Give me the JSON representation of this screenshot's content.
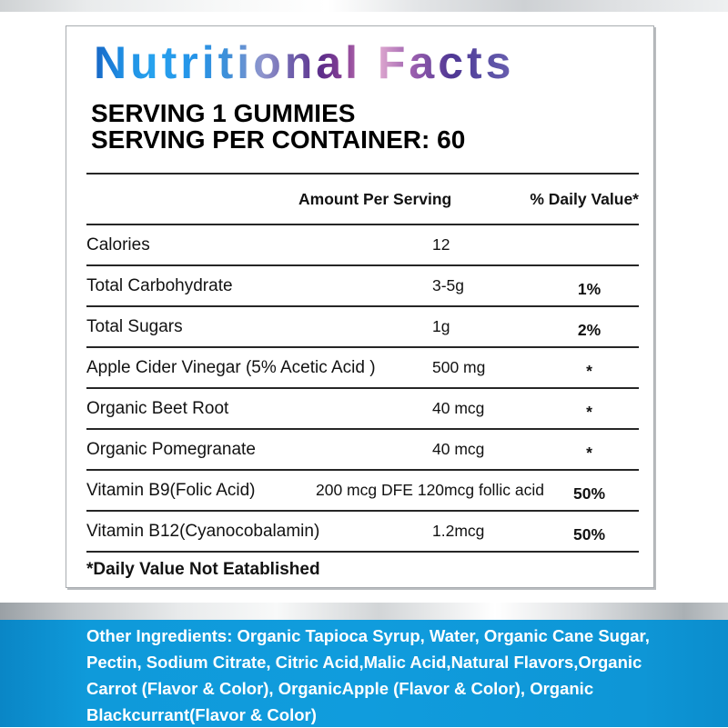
{
  "page": {
    "title": "Nutritional Facts"
  },
  "serving": {
    "line1": "SERVING 1 GUMMIES",
    "line2": "SERVING PER CONTAINER: 60"
  },
  "table": {
    "header": {
      "amount": "Amount Per Serving",
      "daily_value": "% Daily Value*"
    },
    "rows": [
      {
        "label": "Calories",
        "amount": "12",
        "daily_value": ""
      },
      {
        "label": "Total Carbohydrate",
        "amount": "3-5g",
        "daily_value": "1%"
      },
      {
        "label": "Total Sugars",
        "amount": "1g",
        "daily_value": "2%"
      },
      {
        "label": "Apple Cider Vinegar (5% Acetic Acid )",
        "amount": "500 mg",
        "daily_value": "*"
      },
      {
        "label": "Organic Beet Root",
        "amount": "40 mcg",
        "daily_value": "*"
      },
      {
        "label": "Organic Pomegranate",
        "amount": "40 mcg",
        "daily_value": "*"
      },
      {
        "label": "Vitamin B9(Folic Acid)",
        "amount": "200 mcg DFE 120mcg follic acid",
        "daily_value": "50%"
      },
      {
        "label": "Vitamin B12(Cyanocobalamin)",
        "amount": "1.2mcg",
        "daily_value": "50%"
      }
    ],
    "footnote": "*Daily Value Not Eatablished"
  },
  "ingredients": {
    "lines": [
      "Other Ingredients: Organic Tapioca Syrup, Water, Organic Cane Sugar,",
      "Pectin, Sodium Citrate, Citric Acid,Malic Acid,Natural Flavors,Organic",
      "Carrot (Flavor & Color), OrganicApple (Flavor & Color), Organic",
      "Blackcurrant(Flavor & Color)"
    ]
  },
  "colors": {
    "accent_blue": "#0E96D8",
    "title_gradient_start": "#1766C5",
    "title_gradient_mid": "#8D4397",
    "title_gradient_end": "#6A5FB0",
    "table_line": "#262626",
    "ingredients_text": "#FFFFFF"
  }
}
